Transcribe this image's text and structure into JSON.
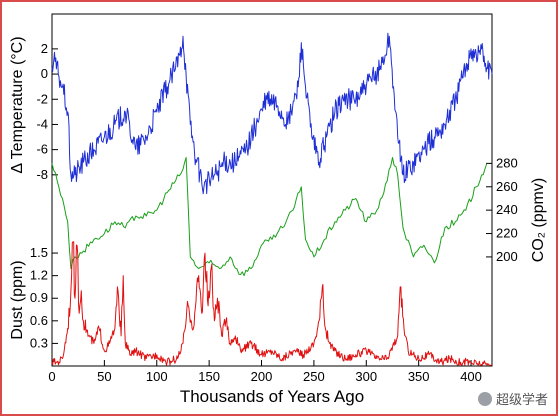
{
  "chart_data": {
    "type": "line",
    "xlabel": "Thousands of Years Ago",
    "xlim": [
      0,
      420
    ],
    "x_ticks": [
      0,
      50,
      100,
      150,
      200,
      250,
      300,
      350,
      400
    ],
    "panels": [
      {
        "name": "temperature",
        "ylabel": "Δ Temperature (°C)",
        "axis_side": "left",
        "ylim": [
          -10,
          3.5
        ],
        "y_ticks": [
          2,
          0,
          -2,
          -4,
          -6,
          -8
        ],
        "color": "#1f2fd6",
        "x": [
          0,
          3,
          6,
          10,
          15,
          18,
          22,
          30,
          40,
          50,
          60,
          70,
          80,
          90,
          100,
          110,
          118,
          122,
          125,
          128,
          132,
          138,
          145,
          155,
          165,
          175,
          185,
          195,
          205,
          215,
          225,
          235,
          238,
          242,
          248,
          255,
          262,
          270,
          278,
          290,
          300,
          310,
          318,
          322,
          326,
          330,
          335,
          345,
          355,
          365,
          375,
          385,
          395,
          400,
          405,
          410,
          415,
          420
        ],
        "y": [
          0.5,
          1,
          0,
          -1,
          -3,
          -8,
          -8,
          -7,
          -6,
          -5,
          -4,
          -3,
          -6,
          -5,
          -3,
          -1,
          0.5,
          1.5,
          3,
          0,
          -4,
          -7,
          -9,
          -8,
          -7,
          -7,
          -6,
          -4,
          -2,
          -2.5,
          -4,
          -1,
          2.5,
          -1,
          -5,
          -7,
          -5,
          -3,
          -2,
          -2,
          -1,
          0,
          1.5,
          3,
          -1,
          -5,
          -8,
          -7,
          -6,
          -5,
          -4,
          -2,
          0.5,
          2,
          1.5,
          2,
          0.5,
          0
        ]
      },
      {
        "name": "co2",
        "ylabel": "CO₂ (ppmv)",
        "axis_side": "right",
        "ylim": [
          170,
          300
        ],
        "y_ticks": [
          280,
          260,
          240,
          220,
          200
        ],
        "color": "#1aa01a",
        "x": [
          0,
          5,
          10,
          15,
          18,
          22,
          30,
          40,
          50,
          60,
          70,
          80,
          90,
          100,
          110,
          118,
          125,
          128,
          132,
          140,
          150,
          160,
          170,
          180,
          190,
          200,
          210,
          215,
          220,
          230,
          238,
          242,
          250,
          260,
          270,
          280,
          290,
          300,
          310,
          320,
          325,
          330,
          335,
          345,
          355,
          365,
          375,
          385,
          395,
          405,
          410,
          415
        ],
        "y": [
          280,
          265,
          250,
          230,
          190,
          200,
          205,
          215,
          220,
          230,
          225,
          235,
          235,
          240,
          255,
          265,
          275,
          285,
          200,
          190,
          195,
          190,
          200,
          185,
          190,
          210,
          215,
          220,
          225,
          240,
          260,
          215,
          200,
          215,
          230,
          240,
          250,
          230,
          240,
          265,
          285,
          270,
          225,
          200,
          210,
          195,
          225,
          230,
          240,
          260,
          270,
          280
        ]
      },
      {
        "name": "dust",
        "ylabel": "Dust (ppm)",
        "axis_side": "left",
        "ylim": [
          0,
          1.7
        ],
        "y_ticks": [
          1.5,
          1.2,
          0.9,
          0.6,
          0.3
        ],
        "color": "#e01010",
        "x": [
          0,
          5,
          10,
          15,
          18,
          20,
          22,
          24,
          26,
          28,
          30,
          35,
          40,
          45,
          50,
          55,
          60,
          63,
          66,
          68,
          70,
          75,
          80,
          90,
          100,
          110,
          120,
          125,
          130,
          135,
          140,
          143,
          146,
          149,
          152,
          155,
          158,
          162,
          166,
          170,
          175,
          180,
          190,
          200,
          210,
          220,
          230,
          240,
          250,
          255,
          258,
          261,
          265,
          270,
          280,
          290,
          300,
          310,
          320,
          330,
          333,
          336,
          340,
          350,
          360,
          370,
          380,
          390,
          400,
          410,
          420
        ],
        "y": [
          0.05,
          0.05,
          0.1,
          0.5,
          1.0,
          1.65,
          0.9,
          1.6,
          0.7,
          1.0,
          0.6,
          0.4,
          0.3,
          0.5,
          0.2,
          0.3,
          0.5,
          1.0,
          0.4,
          1.2,
          0.3,
          0.15,
          0.2,
          0.1,
          0.15,
          0.05,
          0.1,
          0.3,
          0.8,
          0.5,
          1.2,
          0.7,
          1.5,
          0.8,
          1.3,
          0.6,
          0.9,
          0.4,
          0.6,
          0.3,
          0.4,
          0.2,
          0.3,
          0.15,
          0.2,
          0.1,
          0.2,
          0.15,
          0.3,
          0.6,
          1.05,
          0.5,
          0.3,
          0.2,
          0.1,
          0.15,
          0.2,
          0.1,
          0.1,
          0.4,
          1.05,
          0.5,
          0.2,
          0.1,
          0.15,
          0.05,
          0.1,
          0.05,
          0.05,
          0.02,
          0.02
        ]
      }
    ]
  },
  "watermark": {
    "icon": "wechat-icon",
    "text": "超级学者"
  }
}
